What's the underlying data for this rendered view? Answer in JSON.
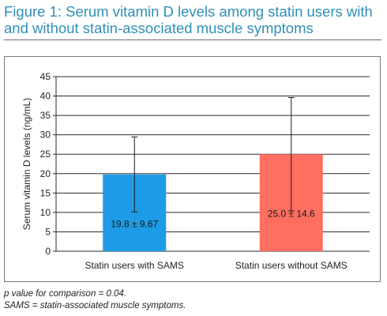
{
  "title_line1": "Figure 1: Serum vitamin D levels among statin users with",
  "title_line2": "and without statin-associated muscle symptoms",
  "footnotes": [
    "p value for comparison = 0.04.",
    "SAMS = statin-associated muscle symptoms."
  ],
  "chart_data": {
    "type": "bar",
    "title": "",
    "ylabel": "Serum vitamin D levels (ng/mL)",
    "xlabel": "",
    "ylim": [
      0,
      45
    ],
    "yticks": [
      0,
      5,
      10,
      15,
      20,
      25,
      30,
      35,
      40,
      45
    ],
    "grid": true,
    "categories": [
      "Statin users with SAMS",
      "Statin users without SAMS"
    ],
    "values": [
      19.8,
      25.0
    ],
    "errors": [
      9.67,
      14.6
    ],
    "data_labels": [
      "19.8 ± 9.67",
      "25.0 ± 14.6"
    ],
    "colors": [
      "#1e9be6",
      "#ff6f61"
    ]
  }
}
